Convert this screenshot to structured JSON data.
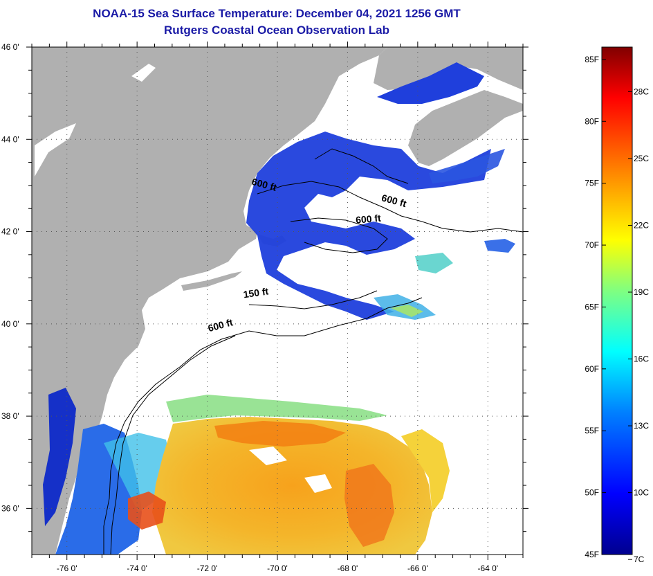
{
  "title": {
    "line1": "NOAA-15 Sea Surface Temperature:  December 04, 2021 1256 GMT",
    "line2": "Rutgers Coastal Ocean Observation Lab"
  },
  "map": {
    "lat_labels": [
      {
        "value": 46,
        "text": "46 0'"
      },
      {
        "value": 44,
        "text": "44 0'"
      },
      {
        "value": 42,
        "text": "42 0'"
      },
      {
        "value": 40,
        "text": "40 0'"
      },
      {
        "value": 38,
        "text": "38 0'"
      },
      {
        "value": 36,
        "text": "36 0'"
      }
    ],
    "lon_labels": [
      {
        "value": -76,
        "text": "-76 0'"
      },
      {
        "value": -74,
        "text": "-74 0'"
      },
      {
        "value": -72,
        "text": "-72 0'"
      },
      {
        "value": -70,
        "text": "-70 0'"
      },
      {
        "value": -68,
        "text": "-68 0'"
      },
      {
        "value": -66,
        "text": "-66 0'"
      },
      {
        "value": -64,
        "text": "-64 0'"
      }
    ],
    "depth_labels": [
      {
        "text": "600 ft",
        "lon": -70.4,
        "lat": 42.95,
        "angle": 15
      },
      {
        "text": "600 ft",
        "lon": -66.7,
        "lat": 42.6,
        "angle": 15
      },
      {
        "text": "600 ft",
        "lon": -67.4,
        "lat": 42.2,
        "angle": -5
      },
      {
        "text": "150 ft",
        "lon": -70.6,
        "lat": 40.6,
        "angle": -8
      },
      {
        "text": "600 ft",
        "lon": -71.6,
        "lat": 39.9,
        "angle": -15
      }
    ],
    "colors": {
      "land": "#b0b0b0",
      "cloud": "#ffffff",
      "cold_blue": "#1f3fdc",
      "warm_orange": "#f5a51f"
    }
  },
  "colorbar": {
    "f_labels": [
      {
        "value": 85,
        "text": "85F"
      },
      {
        "value": 80,
        "text": "80F"
      },
      {
        "value": 75,
        "text": "75F"
      },
      {
        "value": 70,
        "text": "70F"
      },
      {
        "value": 65,
        "text": "65F"
      },
      {
        "value": 60,
        "text": "60F"
      },
      {
        "value": 55,
        "text": "55F"
      },
      {
        "value": 50,
        "text": "50F"
      },
      {
        "value": 45,
        "text": "45F"
      }
    ],
    "c_labels": [
      {
        "value": 28,
        "text": "28C"
      },
      {
        "value": 25,
        "text": "25C"
      },
      {
        "value": 22,
        "text": "22C"
      },
      {
        "value": 19,
        "text": "19C"
      },
      {
        "value": 16,
        "text": "16C"
      },
      {
        "value": 13,
        "text": "13C"
      },
      {
        "value": 10,
        "text": "10C"
      },
      {
        "value": 7,
        "text": "7C"
      }
    ],
    "range_f": [
      45,
      86
    ]
  }
}
